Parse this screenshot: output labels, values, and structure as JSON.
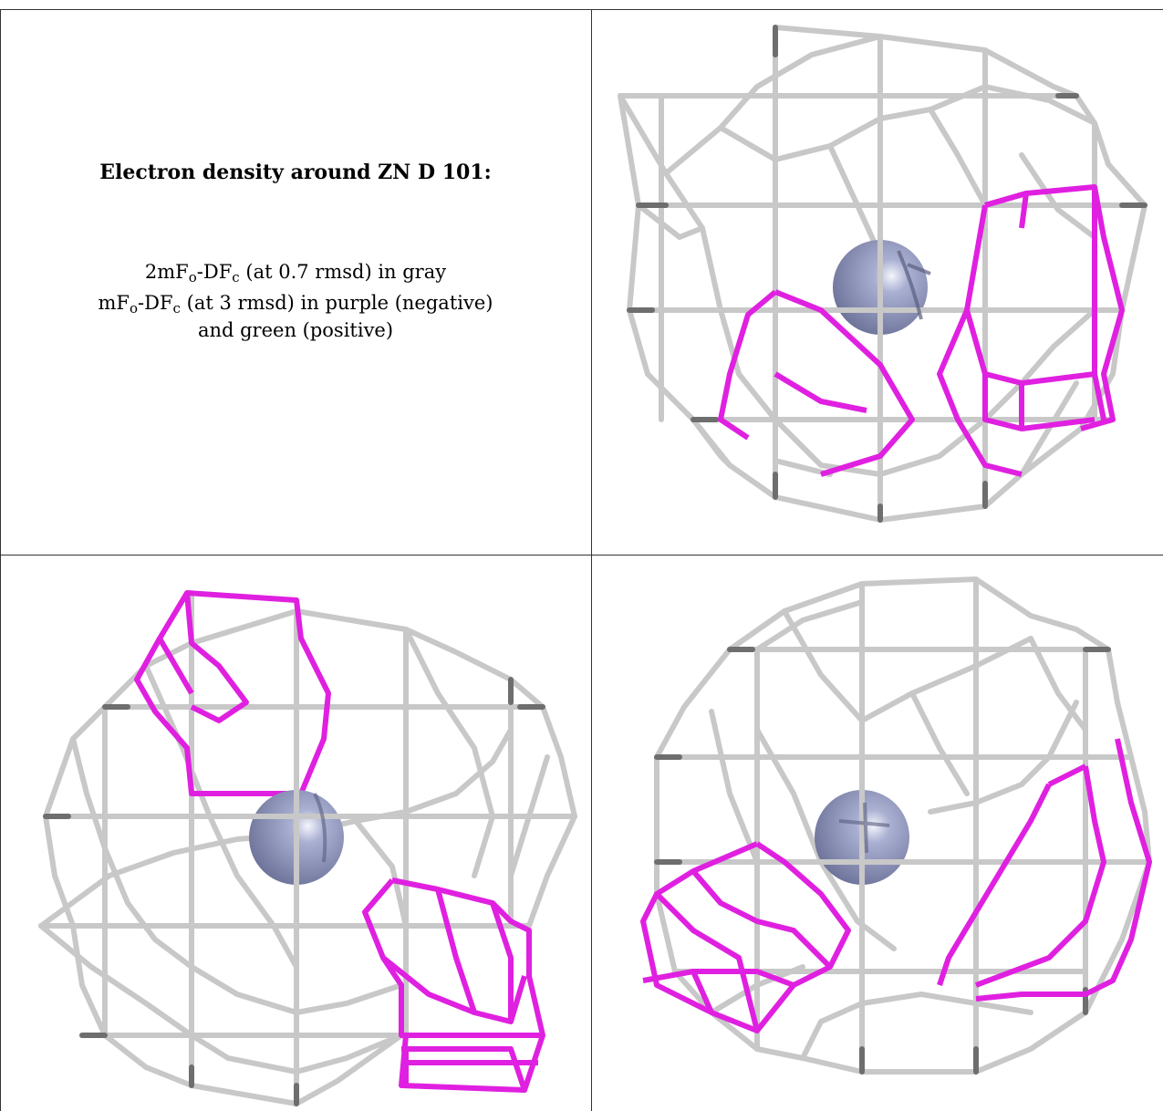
{
  "caption": {
    "title": "Electron density around ZN D 101:",
    "line1": {
      "pre": "2mF",
      "sub1": "o",
      "mid": "-DF",
      "sub2": "c",
      "post": " (at 0.7 rmsd) in gray"
    },
    "line2": {
      "pre": "mF",
      "sub1": "o",
      "mid": "-DF",
      "sub2": "c",
      "post": " (at 3 rmsd) in purple (negative)"
    },
    "line3": "and green (positive)"
  },
  "colors": {
    "gray_mesh": "#c8c8c8",
    "gray_mesh_dark": "#6e6e6e",
    "negative_mesh": "#e020e0",
    "atom": "#8890b8",
    "border": "#333333"
  },
  "icons": {
    "atom": "zinc-sphere-icon"
  }
}
